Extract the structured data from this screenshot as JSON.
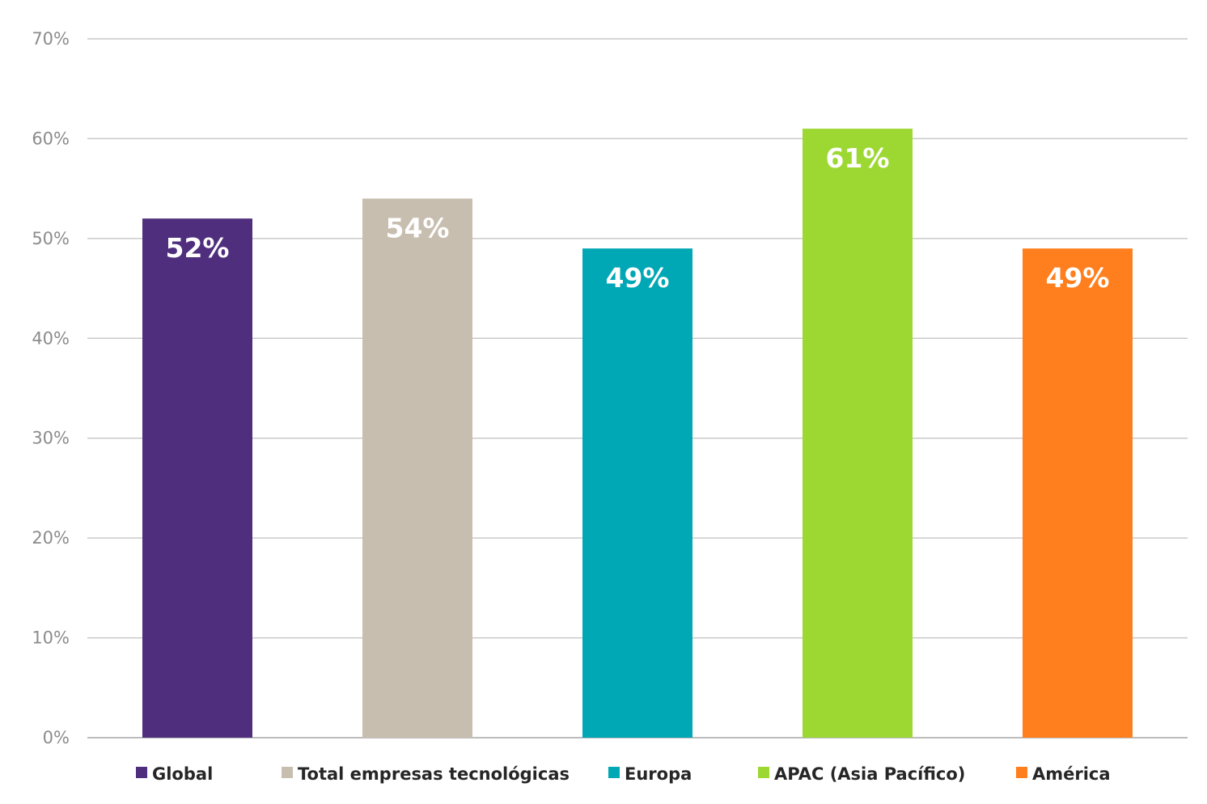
{
  "chart_data": {
    "type": "bar",
    "title": "",
    "xlabel": "",
    "ylabel": "",
    "ylim": [
      0,
      70
    ],
    "y_ticks": [
      {
        "value": 0,
        "label": "0%"
      },
      {
        "value": 10,
        "label": "10%"
      },
      {
        "value": 20,
        "label": "20%"
      },
      {
        "value": 30,
        "label": "30%"
      },
      {
        "value": 40,
        "label": "40%"
      },
      {
        "value": 50,
        "label": "50%"
      },
      {
        "value": 60,
        "label": "60%"
      },
      {
        "value": 70,
        "label": "70%"
      }
    ],
    "grid": true,
    "legend_position": "bottom",
    "bars": [
      {
        "category": "Global",
        "value": 52,
        "label": "52%",
        "color": "#4f2f7d"
      },
      {
        "category": "Total empresas tecnológicas",
        "value": 54,
        "label": "54%",
        "color": "#c7beaf"
      },
      {
        "category": "Europa",
        "value": 49,
        "label": "49%",
        "color": "#00a7b5"
      },
      {
        "category": "APAC (Asia Pacífico)",
        "value": 61,
        "label": "61%",
        "color": "#9dd832"
      },
      {
        "category": "América",
        "value": 49,
        "label": "49%",
        "color": "#ff7f1e"
      }
    ]
  }
}
